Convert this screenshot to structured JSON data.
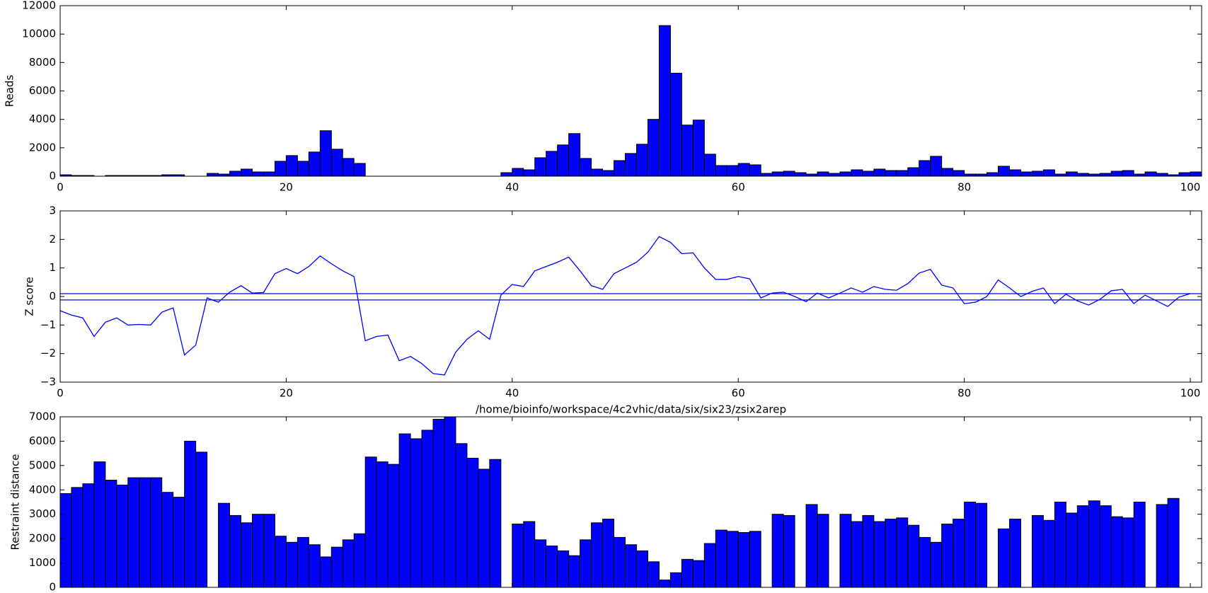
{
  "chart_data": [
    {
      "type": "bar",
      "ylabel": "Reads",
      "color": "#0000ff",
      "x": [
        0,
        1,
        2,
        3,
        4,
        5,
        6,
        7,
        8,
        9,
        10,
        11,
        12,
        13,
        14,
        15,
        16,
        17,
        18,
        19,
        20,
        21,
        22,
        23,
        24,
        25,
        26,
        27,
        28,
        29,
        30,
        31,
        32,
        33,
        34,
        35,
        36,
        37,
        38,
        39,
        40,
        41,
        42,
        43,
        44,
        45,
        46,
        47,
        48,
        49,
        50,
        51,
        52,
        53,
        54,
        55,
        56,
        57,
        58,
        59,
        60,
        61,
        62,
        63,
        64,
        65,
        66,
        67,
        68,
        69,
        70,
        71,
        72,
        73,
        74,
        75,
        76,
        77,
        78,
        79,
        80,
        81,
        82,
        83,
        84,
        85,
        86,
        87,
        88,
        89,
        90,
        91,
        92,
        93,
        94,
        95,
        96,
        97,
        98,
        99,
        100
      ],
      "values": [
        100,
        50,
        50,
        0,
        50,
        50,
        50,
        50,
        50,
        100,
        100,
        0,
        0,
        200,
        150,
        350,
        500,
        300,
        300,
        1050,
        1450,
        1050,
        1700,
        3200,
        1900,
        1250,
        900,
        0,
        0,
        0,
        0,
        0,
        0,
        0,
        0,
        0,
        0,
        0,
        0,
        250,
        550,
        450,
        1300,
        1750,
        2200,
        3000,
        1250,
        500,
        400,
        1100,
        1600,
        2250,
        4000,
        10600,
        7250,
        3600,
        3950,
        1550,
        750,
        750,
        900,
        800,
        200,
        300,
        350,
        250,
        150,
        300,
        200,
        300,
        450,
        350,
        500,
        400,
        400,
        600,
        1100,
        1400,
        550,
        400,
        150,
        150,
        250,
        700,
        450,
        300,
        350,
        450,
        150,
        300,
        200,
        150,
        200,
        350,
        400,
        150,
        300,
        200,
        100,
        250,
        300
      ],
      "xlim": [
        0,
        101
      ],
      "xticks": [
        0,
        20,
        40,
        60,
        80,
        100
      ],
      "ylim": [
        0,
        12000
      ],
      "yticks": [
        0,
        2000,
        4000,
        6000,
        8000,
        10000,
        12000
      ]
    },
    {
      "type": "line",
      "ylabel": "Z score",
      "color": "#0000ff",
      "hlines": [
        0.1,
        -0.12
      ],
      "x": [
        0,
        1,
        2,
        3,
        4,
        5,
        6,
        7,
        8,
        9,
        10,
        11,
        12,
        13,
        14,
        15,
        16,
        17,
        18,
        19,
        20,
        21,
        22,
        23,
        24,
        25,
        26,
        27,
        28,
        29,
        30,
        31,
        32,
        33,
        34,
        35,
        36,
        37,
        38,
        39,
        40,
        41,
        42,
        43,
        44,
        45,
        46,
        47,
        48,
        49,
        50,
        51,
        52,
        53,
        54,
        55,
        56,
        57,
        58,
        59,
        60,
        61,
        62,
        63,
        64,
        65,
        66,
        67,
        68,
        69,
        70,
        71,
        72,
        73,
        74,
        75,
        76,
        77,
        78,
        79,
        80,
        81,
        82,
        83,
        84,
        85,
        86,
        87,
        88,
        89,
        90,
        91,
        92,
        93,
        94,
        95,
        96,
        97,
        98,
        99,
        100
      ],
      "values": [
        -0.5,
        -0.65,
        -0.75,
        -1.4,
        -0.9,
        -0.75,
        -1.0,
        -0.98,
        -1.0,
        -0.55,
        -0.4,
        -2.05,
        -1.7,
        -0.05,
        -0.2,
        0.15,
        0.38,
        0.12,
        0.14,
        0.8,
        0.98,
        0.8,
        1.05,
        1.42,
        1.15,
        0.9,
        0.7,
        -1.55,
        -1.4,
        -1.35,
        -2.25,
        -2.1,
        -2.35,
        -2.7,
        -2.75,
        -1.95,
        -1.5,
        -1.2,
        -1.5,
        0.05,
        0.42,
        0.35,
        0.9,
        1.05,
        1.2,
        1.38,
        0.9,
        0.38,
        0.25,
        0.8,
        1.0,
        1.2,
        1.55,
        2.1,
        1.9,
        1.5,
        1.53,
        1.0,
        0.6,
        0.6,
        0.7,
        0.62,
        -0.05,
        0.12,
        0.15,
        0.0,
        -0.18,
        0.12,
        -0.05,
        0.12,
        0.3,
        0.15,
        0.35,
        0.25,
        0.22,
        0.45,
        0.82,
        0.95,
        0.4,
        0.3,
        -0.25,
        -0.2,
        0.0,
        0.58,
        0.3,
        0.0,
        0.18,
        0.3,
        -0.25,
        0.08,
        -0.15,
        -0.3,
        -0.1,
        0.2,
        0.25,
        -0.25,
        0.05,
        -0.15,
        -0.35,
        -0.02,
        0.1
      ],
      "xlim": [
        0,
        101
      ],
      "xticks": [
        0,
        20,
        40,
        60,
        80,
        100
      ],
      "ylim": [
        -3,
        3
      ],
      "yticks": [
        {
          "value": -3,
          "label": "−3"
        },
        {
          "value": -2,
          "label": "−2"
        },
        {
          "value": -1,
          "label": "−1"
        },
        0,
        1,
        2,
        3
      ]
    },
    {
      "type": "bar",
      "title": "/home/bioinfo/workspace/4c2vhic/data/six/six23/zsix2arep",
      "ylabel": "Restraint distance",
      "color": "#0000ff",
      "x": [
        0,
        1,
        2,
        3,
        4,
        5,
        6,
        7,
        8,
        9,
        10,
        11,
        12,
        13,
        14,
        15,
        16,
        17,
        18,
        19,
        20,
        21,
        22,
        23,
        24,
        25,
        26,
        27,
        28,
        29,
        30,
        31,
        32,
        33,
        34,
        35,
        36,
        37,
        38,
        39,
        40,
        41,
        42,
        43,
        44,
        45,
        46,
        47,
        48,
        49,
        50,
        51,
        52,
        53,
        54,
        55,
        56,
        57,
        58,
        59,
        60,
        61,
        62,
        63,
        64,
        65,
        66,
        67,
        68,
        69,
        70,
        71,
        72,
        73,
        74,
        75,
        76,
        77,
        78,
        79,
        80,
        81,
        82,
        83,
        84,
        85,
        86,
        87,
        88,
        89,
        90,
        91,
        92,
        93,
        94,
        95,
        96,
        97,
        98,
        99,
        100
      ],
      "values": [
        3850,
        4100,
        4250,
        5150,
        4400,
        4200,
        4500,
        4500,
        4500,
        3900,
        3700,
        6000,
        5550,
        null,
        3450,
        2950,
        2650,
        3000,
        3000,
        2100,
        1850,
        2050,
        1750,
        1250,
        1650,
        1950,
        2200,
        5350,
        5150,
        5050,
        6300,
        6100,
        6450,
        6900,
        7000,
        5900,
        5300,
        4850,
        5250,
        null,
        2600,
        2700,
        1950,
        1700,
        1500,
        1300,
        1950,
        2650,
        2800,
        2050,
        1750,
        1500,
        1050,
        300,
        600,
        1150,
        1100,
        1800,
        2350,
        2300,
        2250,
        2300,
        null,
        3000,
        2950,
        null,
        3400,
        3000,
        null,
        3000,
        2700,
        2950,
        2700,
        2800,
        2850,
        2550,
        2050,
        1850,
        2600,
        2800,
        3500,
        3450,
        null,
        2400,
        2800,
        null,
        2950,
        2750,
        3500,
        3050,
        3350,
        3550,
        3350,
        2900,
        2850,
        3500,
        null,
        3400,
        3650,
        null,
        null
      ],
      "xlim": [
        0,
        101
      ],
      "xticks": [
        0,
        20,
        40,
        60,
        80,
        100
      ],
      "ylim": [
        0,
        7000
      ],
      "yticks": [
        0,
        1000,
        2000,
        3000,
        4000,
        5000,
        6000,
        7000
      ]
    }
  ]
}
